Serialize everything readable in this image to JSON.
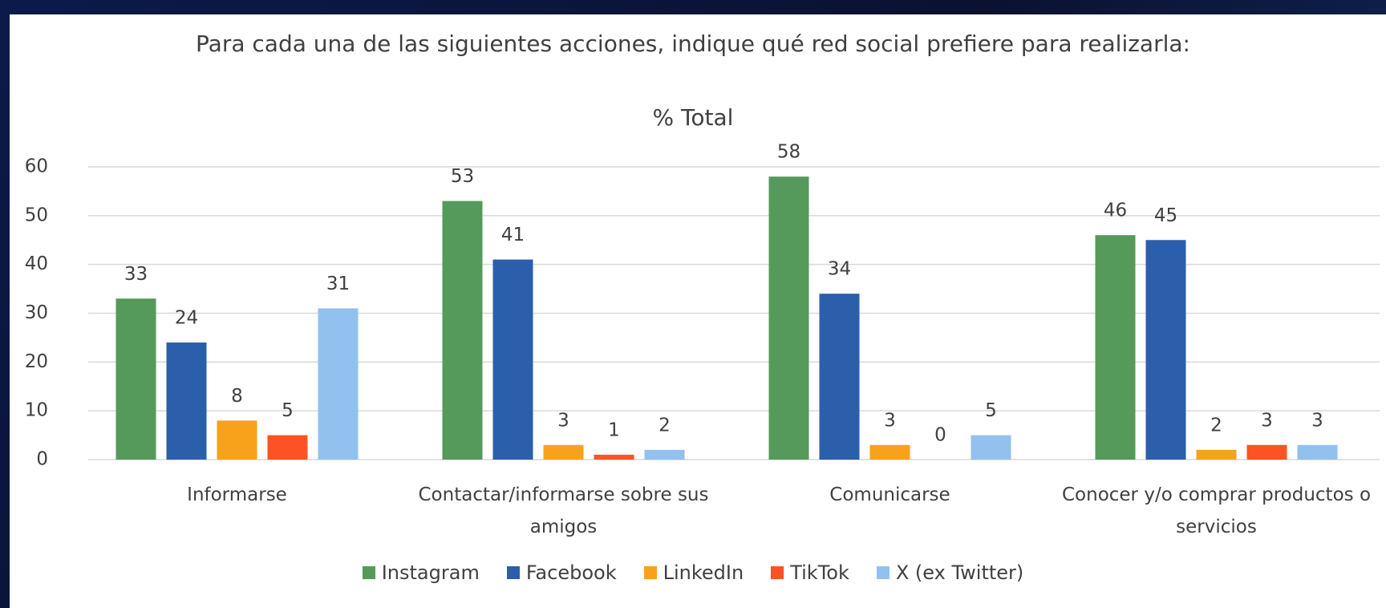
{
  "chart_data": {
    "type": "bar",
    "title": "Para cada una de las siguientes acciones, indique qué red social prefiere para realizarla:",
    "subtitle": "% Total",
    "categories": [
      "Informarse",
      "Contactar/informarse sobre sus amigos",
      "Comunicarse",
      "Conocer y/o comprar productos o servicios"
    ],
    "series": [
      {
        "name": "Instagram",
        "color": "#559a5a",
        "values": [
          33,
          53,
          58,
          46
        ]
      },
      {
        "name": "Facebook",
        "color": "#2b5fab",
        "values": [
          24,
          41,
          34,
          45
        ]
      },
      {
        "name": "LinkedIn",
        "color": "#f8a21c",
        "values": [
          8,
          3,
          3,
          2
        ]
      },
      {
        "name": "TikTok",
        "color": "#fb5323",
        "values": [
          5,
          1,
          0,
          3
        ]
      },
      {
        "name": "X (ex Twitter)",
        "color": "#93c1ef",
        "values": [
          31,
          2,
          5,
          3
        ]
      }
    ],
    "ylim": [
      0,
      60
    ],
    "yticks": [
      0,
      10,
      20,
      30,
      40,
      50,
      60
    ],
    "grid": true,
    "legend": "bottom"
  }
}
